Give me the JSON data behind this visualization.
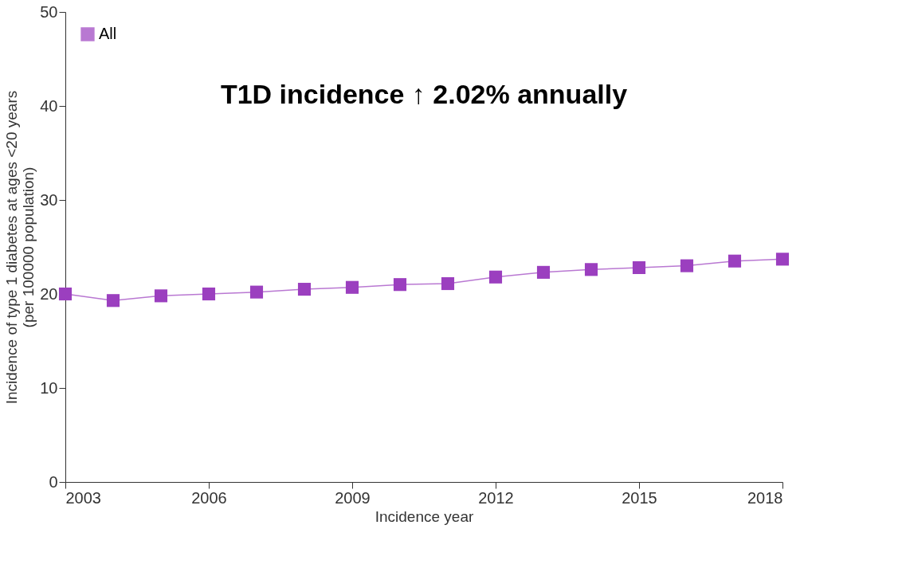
{
  "chart_data": {
    "type": "line",
    "xlabel": "Incidence year",
    "ylabel": "Incidence of type 1 diabetes at ages <20 years\n(per 100000 population)",
    "x": [
      2003,
      2004,
      2005,
      2006,
      2007,
      2008,
      2009,
      2010,
      2011,
      2012,
      2013,
      2014,
      2015,
      2016,
      2017,
      2018
    ],
    "series": [
      {
        "name": "All",
        "color": "#9b3fbf",
        "values": [
          20.0,
          19.3,
          19.8,
          20.0,
          20.2,
          20.5,
          20.7,
          21.0,
          21.1,
          21.8,
          22.3,
          22.6,
          22.8,
          23.0,
          23.5,
          23.7
        ]
      }
    ],
    "xlim": [
      2003,
      2018
    ],
    "xticks": [
      2003,
      2006,
      2009,
      2012,
      2015,
      2018
    ],
    "ylim": [
      0,
      50
    ],
    "yticks": [
      0,
      10,
      20,
      30,
      40,
      50
    ],
    "annotations": [
      "T1D incidence ↑ 2.02% annually"
    ],
    "legend": "top left",
    "marker": "square",
    "line_style": "solid",
    "grid": false
  }
}
